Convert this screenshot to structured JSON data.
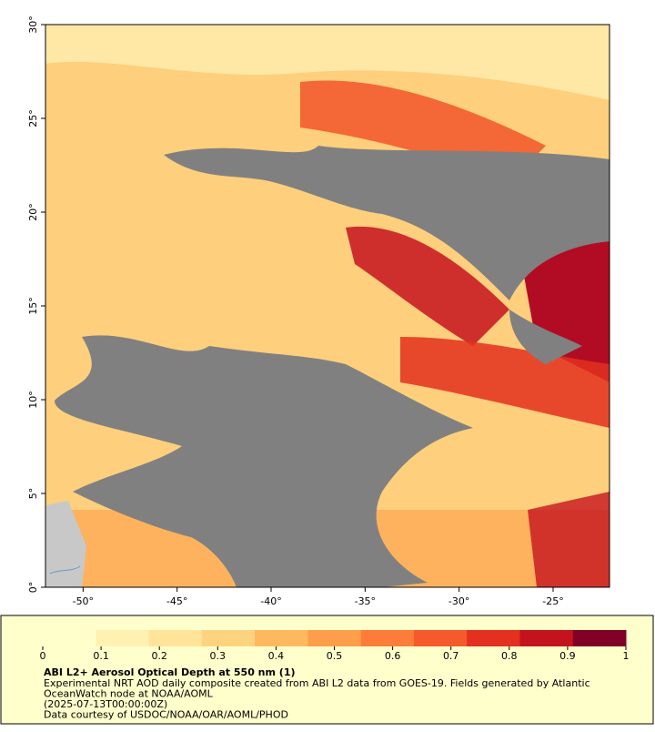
{
  "map": {
    "xlim": [
      -52,
      -22
    ],
    "ylim": [
      0,
      30
    ],
    "xticks": [
      {
        "value": -50,
        "label": "-50°"
      },
      {
        "value": -45,
        "label": "-45°"
      },
      {
        "value": -40,
        "label": "-40°"
      },
      {
        "value": -35,
        "label": "-35°"
      },
      {
        "value": -30,
        "label": "-30°"
      },
      {
        "value": -25,
        "label": "-25°"
      }
    ],
    "yticks": [
      {
        "value": 0,
        "label": "0°"
      },
      {
        "value": 5,
        "label": "5°"
      },
      {
        "value": 10,
        "label": "10°"
      },
      {
        "value": 15,
        "label": "15°"
      },
      {
        "value": 20,
        "label": "20°"
      },
      {
        "value": 25,
        "label": "25°"
      },
      {
        "value": 30,
        "label": "30°"
      }
    ],
    "colorbar": {
      "lim": [
        0,
        1
      ],
      "ticks": [
        0,
        0.1,
        0.2,
        0.3,
        0.4,
        0.5,
        0.6,
        0.7,
        0.8,
        0.9,
        1
      ],
      "colors": [
        "#ffffcc",
        "#fff2b0",
        "#ffe49a",
        "#fed37f",
        "#feb95f",
        "#fd9f4a",
        "#fc7d3a",
        "#f55a2c",
        "#e3301f",
        "#c5131e",
        "#800026"
      ]
    },
    "caption": {
      "title": "ABI L2+ Aerosol Optical Depth at 550 nm (1)",
      "lines": [
        "Experimental NRT AOD daily composite created from ABI L2 data from GOES-19. Fields generated by Atlantic",
        "OceanWatch node at NOAA/AOML",
        "(2025-07-13T00:00:00Z)",
        "Data courtesy of USDOC/NOAA/OAR/AOML/PHOD"
      ]
    }
  }
}
